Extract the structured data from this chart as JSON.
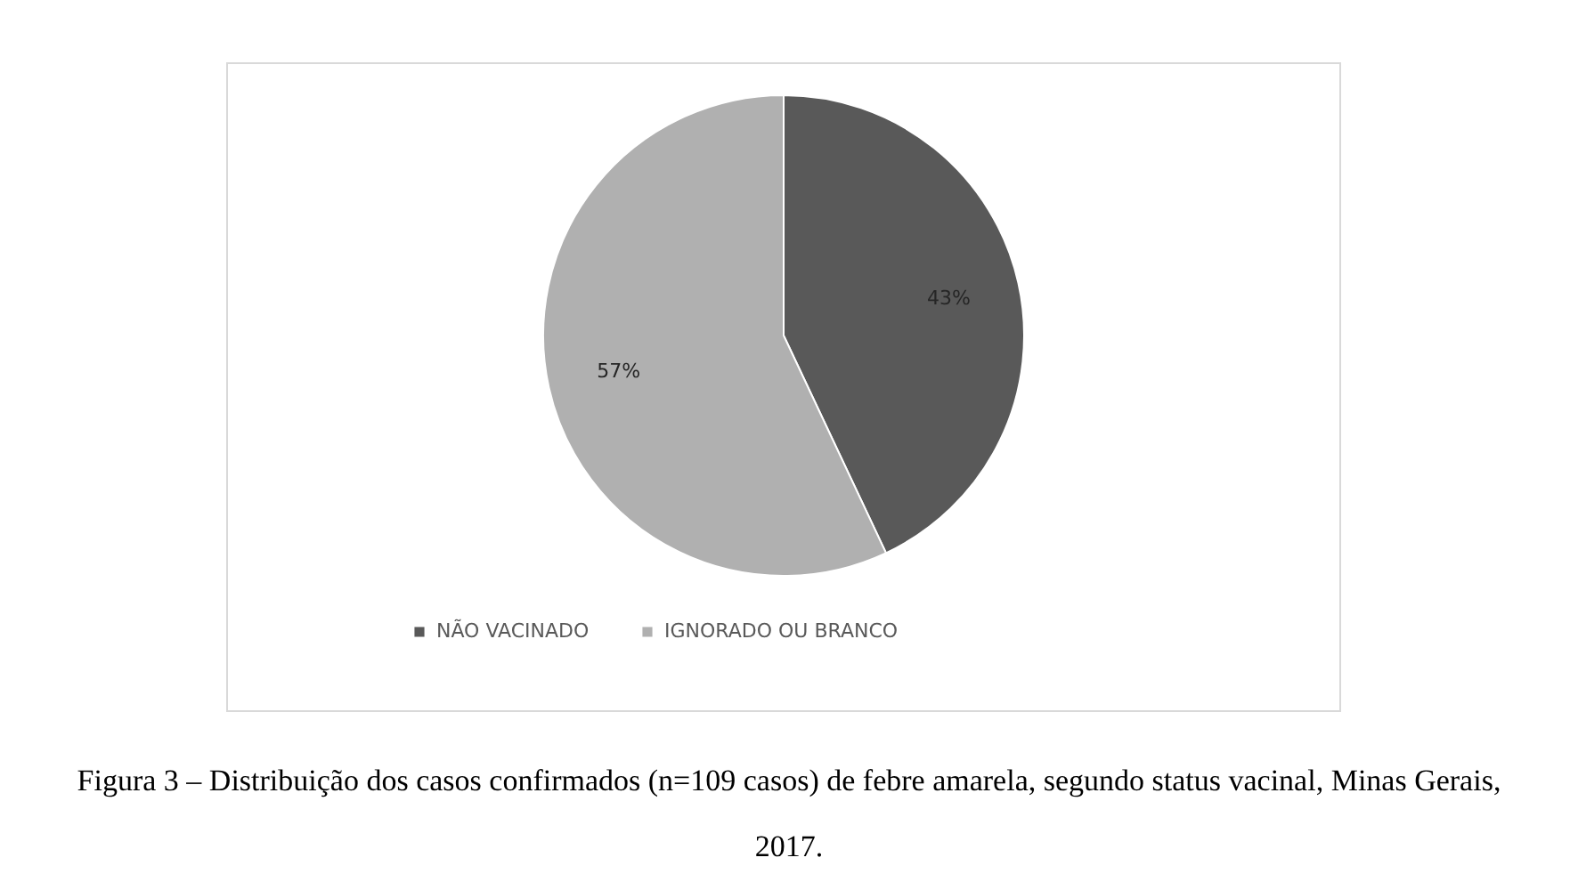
{
  "chart_data": {
    "type": "pie",
    "categories": [
      "NÃO VACINADO",
      "IGNORADO OU BRANCO"
    ],
    "values": [
      43,
      57
    ],
    "colors": [
      "#595959",
      "#b0b0b0"
    ],
    "value_labels": [
      "43%",
      "57%"
    ],
    "legend": "bottom",
    "annotations": [
      "Figura 3 – Distribuição dos casos confirmados (n=109 casos) de febre amarela, segundo status vacinal, Minas Gerais, 2017."
    ]
  }
}
